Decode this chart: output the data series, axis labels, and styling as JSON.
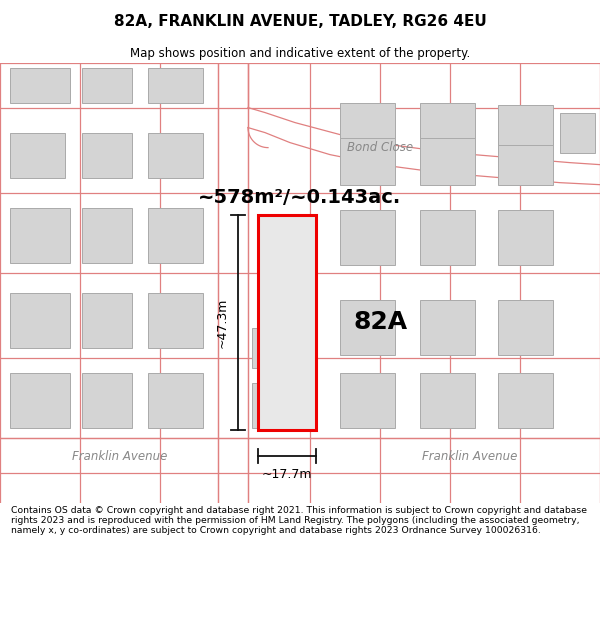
{
  "title": "82A, FRANKLIN AVENUE, TADLEY, RG26 4EU",
  "subtitle": "Map shows position and indicative extent of the property.",
  "footer": "Contains OS data © Crown copyright and database right 2021. This information is subject to Crown copyright and database rights 2023 and is reproduced with the permission of HM Land Registry. The polygons (including the associated geometry, namely x, y co-ordinates) are subject to Crown copyright and database rights 2023 Ordnance Survey 100026316.",
  "area_label": "~578m²/~0.143ac.",
  "width_label": "~17.7m",
  "height_label": "~47.3m",
  "property_label": "82A",
  "background_color": "#ffffff",
  "map_bg_color": "#fdf5f5",
  "road_color": "#ffffff",
  "building_fill": "#d4d4d4",
  "building_outline": "#aaaaaa",
  "property_fill": "#e8e8e8",
  "property_outline": "#ee0000",
  "road_line_color": "#e08080",
  "road_label_color": "#888888",
  "dim_line_color": "#111111",
  "bond_close_label": "Bond Close",
  "franklin_label1": "Franklin Avenue",
  "franklin_label2": "Franklin Avenue"
}
